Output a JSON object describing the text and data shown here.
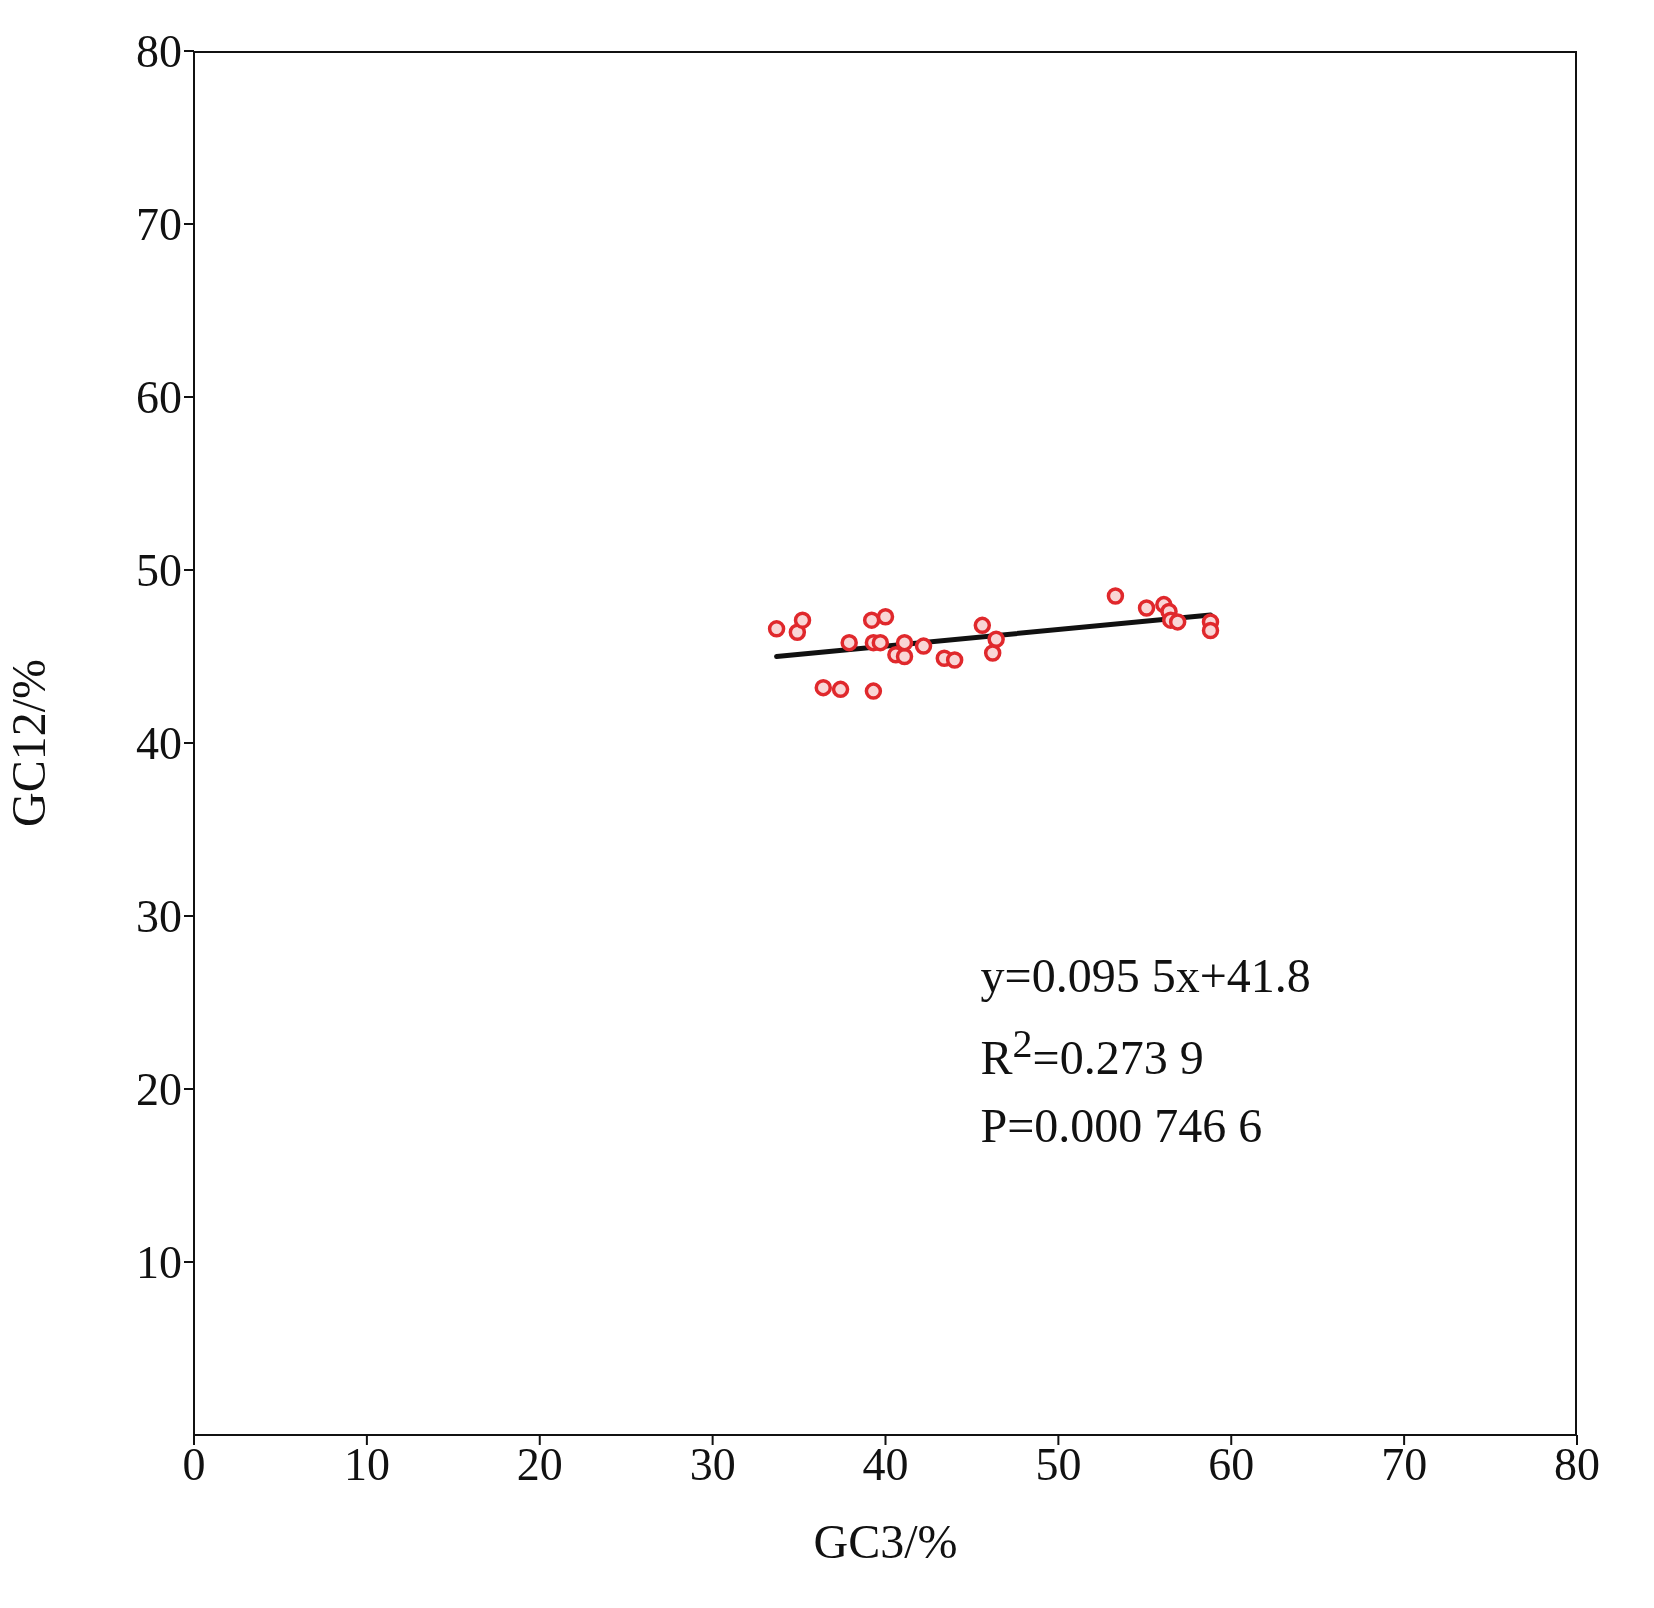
{
  "chart_data": {
    "type": "scatter",
    "xlabel": "GC3/%",
    "ylabel": "GC12/%",
    "xlim": [
      0,
      80
    ],
    "xticks": [
      0,
      10,
      20,
      30,
      40,
      50,
      60,
      70,
      80
    ],
    "ylim": [
      0,
      80
    ],
    "yticks": [
      10,
      20,
      30,
      40,
      50,
      60,
      70,
      80
    ],
    "grid": false,
    "legend": false,
    "annotations": [
      "y=0.095 5x+41.8",
      "R$^{2}$=0.273 9",
      "P=0.000 746 6"
    ],
    "series": [
      {
        "marker": "circle",
        "color": "#e0282c",
        "x": [
          33.7,
          34.9,
          35.2,
          36.4,
          37.4,
          37.9,
          39.2,
          40.0,
          39.3,
          39.7,
          39.3,
          40.6,
          41.1,
          41.1,
          42.2,
          43.4,
          44.0,
          45.6,
          46.4,
          46.2,
          53.3,
          55.1,
          56.1,
          56.4,
          56.5,
          56.9,
          58.8,
          58.8
        ],
        "values": [
          46.6,
          46.4,
          47.1,
          43.2,
          43.1,
          45.8,
          47.1,
          47.3,
          45.8,
          45.8,
          43.0,
          45.1,
          45.0,
          45.8,
          45.6,
          44.9,
          44.8,
          46.8,
          46.0,
          45.2,
          48.5,
          47.8,
          48.0,
          47.6,
          47.1,
          47.0,
          47.0,
          46.5
        ]
      },
      {
        "type": "line",
        "marker": "none",
        "color": "#111111",
        "x": [
          33.7,
          58.8
        ],
        "values": [
          45.0,
          47.4
        ]
      }
    ]
  }
}
